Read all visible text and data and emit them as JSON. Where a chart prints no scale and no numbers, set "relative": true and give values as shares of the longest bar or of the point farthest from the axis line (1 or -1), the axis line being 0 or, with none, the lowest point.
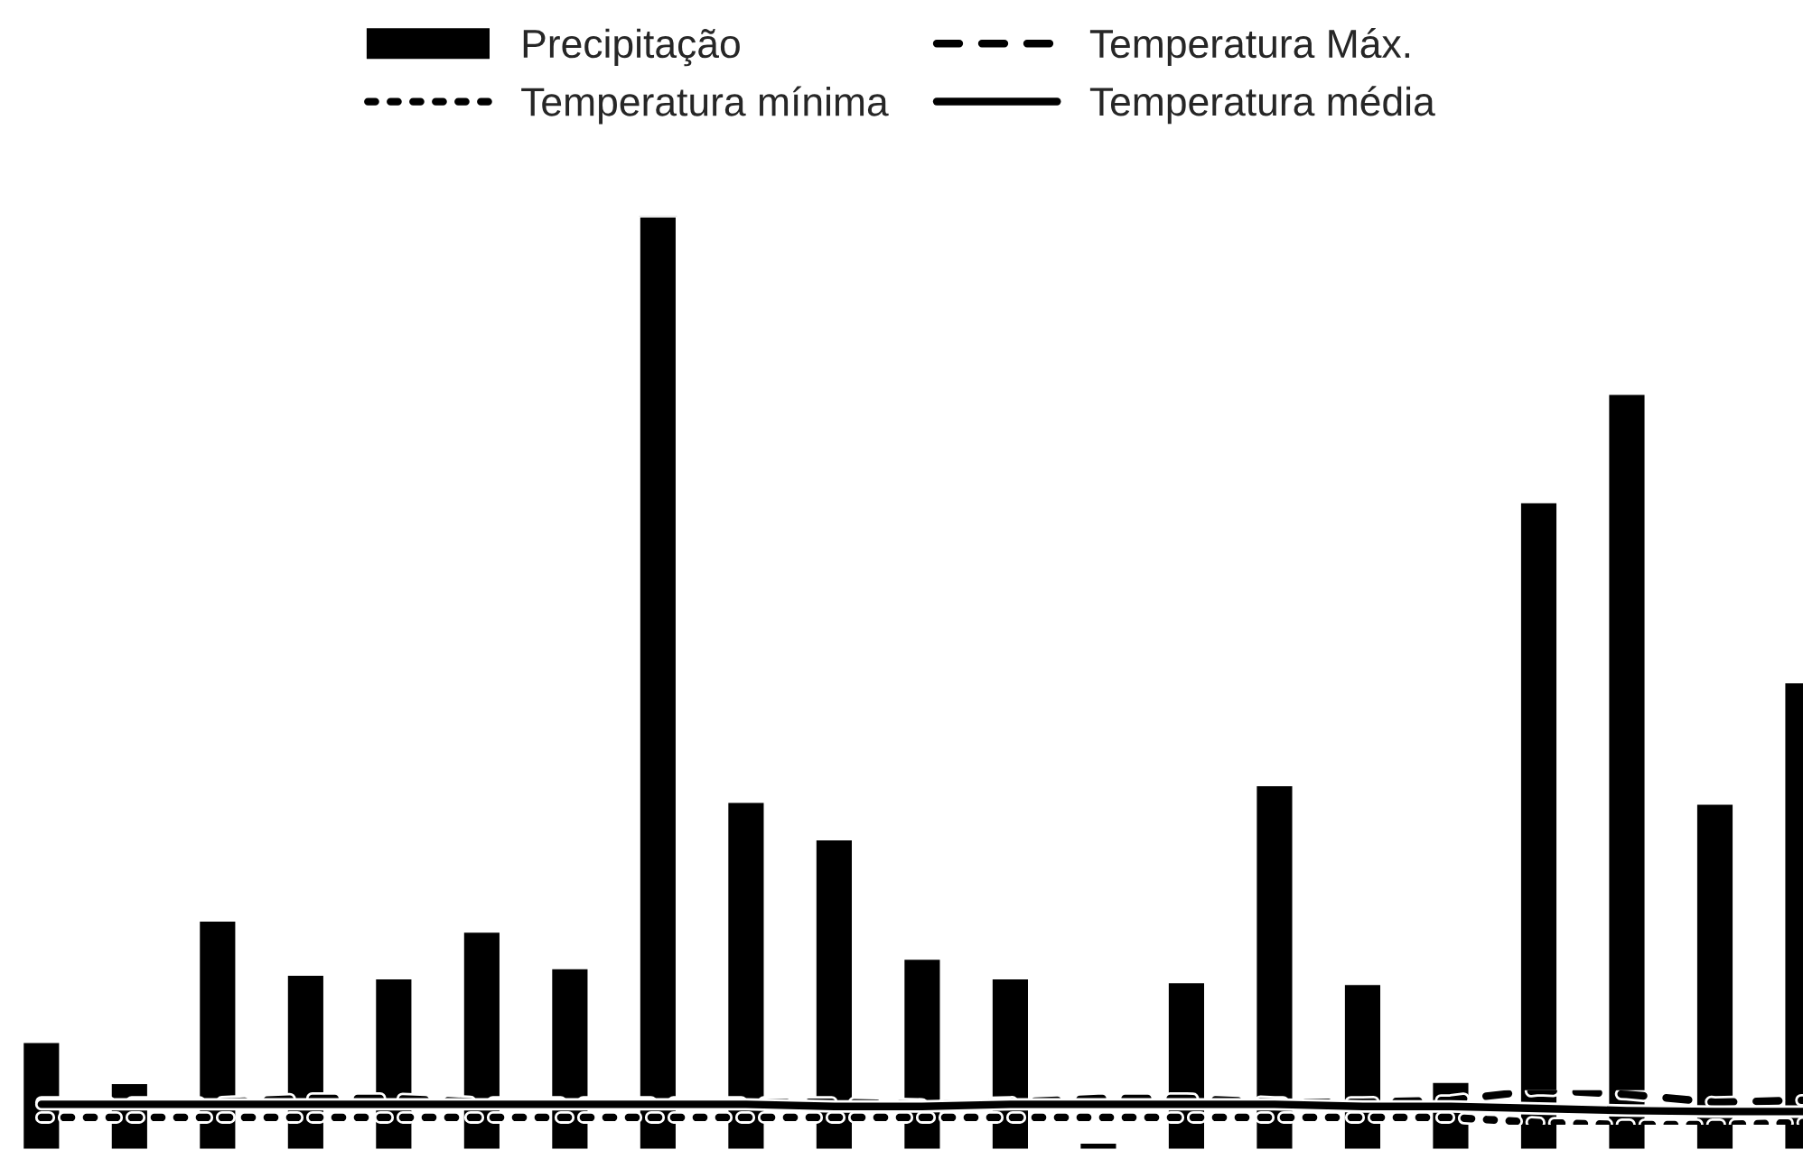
{
  "chart_data": [
    {
      "type": "bar",
      "relative": true,
      "legend": "top",
      "grid": false,
      "categories": [
        null,
        null,
        null,
        null,
        null,
        null,
        null,
        null,
        null,
        null,
        null,
        null,
        null,
        null,
        null,
        null,
        null,
        null,
        null,
        null,
        null
      ],
      "series": [
        {
          "name": "Precipitação",
          "color": "#000000",
          "values": [
            0.116,
            0.072,
            0.246,
            0.188,
            0.184,
            0.234,
            0.195,
            1,
            0.373,
            0.333,
            0.205,
            0.184,
            0.008,
            0.18,
            0.391,
            0.178,
            0.073,
            0.694,
            0.81,
            0.371,
            0.501
          ]
        }
      ]
    },
    {
      "type": "line",
      "relative": true,
      "legend": "top",
      "grid": false,
      "categories": [
        null,
        null,
        null,
        null,
        null,
        null,
        null,
        null,
        null,
        null,
        null,
        null,
        null,
        null,
        null,
        null,
        null,
        null,
        null,
        null,
        null
      ],
      "series": [
        {
          "name": "Temperatura Máx.",
          "line_style": "dashed",
          "color": "#000000",
          "values": [
            0.65,
            0.65,
            0.65,
            0.76,
            0.76,
            0.65,
            0.65,
            0.65,
            0.65,
            0.65,
            0.59,
            0.65,
            0.76,
            0.76,
            0.65,
            0.65,
            0.71,
            1,
            0.88,
            0.65,
            0.71
          ]
        },
        {
          "name": "Temperatura mínima",
          "line_style": "dotted",
          "color": "#000000",
          "values": [
            0.21,
            0.21,
            0.21,
            0.21,
            0.21,
            0.21,
            0.21,
            0.21,
            0.21,
            0.21,
            0.21,
            0.21,
            0.21,
            0.21,
            0.21,
            0.21,
            0.21,
            0.06,
            0,
            0,
            0.06
          ]
        },
        {
          "name": "Temperatura média",
          "line_style": "solid",
          "color": "#000000",
          "values": [
            0.59,
            0.59,
            0.59,
            0.59,
            0.59,
            0.59,
            0.59,
            0.59,
            0.59,
            0.53,
            0.53,
            0.59,
            0.59,
            0.59,
            0.59,
            0.53,
            0.53,
            0.47,
            0.41,
            0.38,
            0.38
          ]
        }
      ]
    }
  ]
}
